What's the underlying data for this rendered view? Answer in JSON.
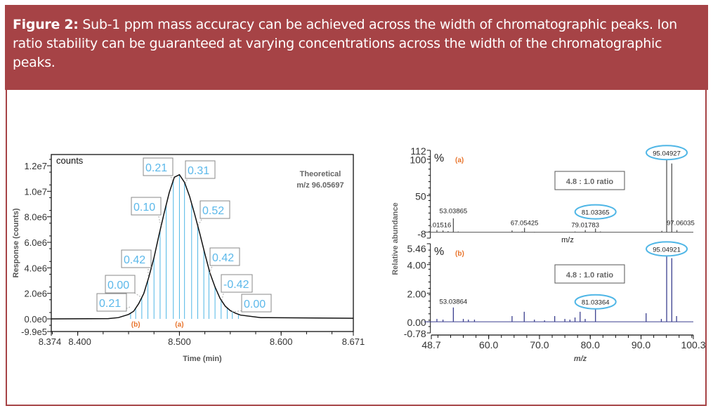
{
  "caption": {
    "label": "Figure 2:",
    "text": " Sub-1 ppm mass accuracy can be achieved across the width of chromatographic peaks. Ion ratio stability can be guaranteed at varying concentrations across the width of the chromatographic peaks."
  },
  "colors": {
    "brand": "#a64346",
    "stem": "#4fb6e6",
    "label": "#5bb8ea",
    "orange": "#e8742c",
    "spectrum_b": "#3b3f8f"
  },
  "chart_data": [
    {
      "type": "line",
      "title": "",
      "unit_label": "counts",
      "xlabel": "Time (min)",
      "ylabel": "Response (counts)",
      "xlim": [
        8.374,
        8.671
      ],
      "ylim": [
        -990000,
        12880000
      ],
      "xticks": [
        {
          "v": 8.374,
          "t": "8.374"
        },
        {
          "v": 8.4,
          "t": "8.400"
        },
        {
          "v": 8.5,
          "t": "8.500"
        },
        {
          "v": 8.6,
          "t": "8.600"
        },
        {
          "v": 8.671,
          "t": "8.671"
        }
      ],
      "yticks": [
        {
          "v": 12000000,
          "t": "1.2e7"
        },
        {
          "v": 10000000,
          "t": "1.0e7"
        },
        {
          "v": 8000000,
          "t": "8.0e6"
        },
        {
          "v": 6000000,
          "t": "6.0e6"
        },
        {
          "v": 4000000,
          "t": "4.0e6"
        },
        {
          "v": 2000000,
          "t": "2.0e6"
        },
        {
          "v": 0,
          "t": "0.0e0"
        },
        {
          "v": -990000,
          "t": "-9.9e5"
        }
      ],
      "annotation": [
        "Theoretical",
        "m/z 96.05697"
      ],
      "curve": [
        [
          8.374,
          0
        ],
        [
          8.43,
          20000
        ],
        [
          8.44,
          100000
        ],
        [
          8.45,
          350000
        ],
        [
          8.455,
          600000
        ],
        [
          8.46,
          1200000
        ],
        [
          8.465,
          2000000
        ],
        [
          8.47,
          3300000
        ],
        [
          8.475,
          4800000
        ],
        [
          8.48,
          6600000
        ],
        [
          8.485,
          8300000
        ],
        [
          8.49,
          9900000
        ],
        [
          8.495,
          11100000
        ],
        [
          8.5,
          11300000
        ],
        [
          8.505,
          10700000
        ],
        [
          8.51,
          9600000
        ],
        [
          8.515,
          8200000
        ],
        [
          8.52,
          6700000
        ],
        [
          8.525,
          5100000
        ],
        [
          8.53,
          3600000
        ],
        [
          8.535,
          2500000
        ],
        [
          8.54,
          1600000
        ],
        [
          8.545,
          1000000
        ],
        [
          8.55,
          650000
        ],
        [
          8.555,
          450000
        ],
        [
          8.56,
          300000
        ],
        [
          8.58,
          100000
        ],
        [
          8.671,
          50000
        ]
      ],
      "scan_times": [
        8.452,
        8.457,
        8.463,
        8.469,
        8.475,
        8.481,
        8.487,
        8.494,
        8.5,
        8.505,
        8.512,
        8.518,
        8.524,
        8.529,
        8.535,
        8.541,
        8.547,
        8.552,
        8.558
      ],
      "markers": [
        {
          "t": 8.457,
          "label": "(b)"
        },
        {
          "t": 8.5,
          "label": "(a)"
        }
      ],
      "ppm_errors": [
        "0.21",
        "0.00",
        "0.42",
        "0.10",
        "0.21",
        "0.31",
        "0.52",
        "0.42",
        "-0.42",
        "0.00"
      ]
    },
    {
      "type": "bar",
      "title": "(a)",
      "unit_label": "%",
      "xlabel": "m/z",
      "ylim": [
        -8,
        112
      ],
      "xlim": [
        48.7,
        100.3
      ],
      "yticks": [
        {
          "v": 112,
          "t": "112"
        },
        {
          "v": 100,
          "t": "100"
        },
        {
          "v": 50,
          "t": "50"
        },
        {
          "v": -8,
          "t": "-8"
        }
      ],
      "ratio": "4.8 : 1.0 ratio",
      "peaks": [
        [
          49.8,
          3
        ],
        [
          51,
          2.5
        ],
        [
          52,
          1.5
        ],
        [
          53.04,
          19
        ],
        [
          54,
          1
        ],
        [
          64.6,
          2.5
        ],
        [
          66.6,
          1
        ],
        [
          67.05,
          6
        ],
        [
          69,
          0.5
        ],
        [
          77,
          1
        ],
        [
          79.02,
          3
        ],
        [
          81.03,
          5
        ],
        [
          82,
          1
        ],
        [
          94.1,
          2
        ],
        [
          95.05,
          99
        ],
        [
          96.06,
          94
        ],
        [
          97.06,
          3
        ]
      ],
      "peak_labels": [
        {
          "mz": 50.6,
          "y": 7,
          "t": ".01516",
          "circled": false
        },
        {
          "mz": 53.04,
          "y": 26,
          "t": "53.03865",
          "circled": false
        },
        {
          "mz": 67.05,
          "y": 10,
          "t": "67.05425",
          "circled": false
        },
        {
          "mz": 79.02,
          "y": 7,
          "t": "79.01783",
          "circled": false
        },
        {
          "mz": 81.03,
          "y": 24,
          "t": "81.03365",
          "circled": true
        },
        {
          "mz": 95.05,
          "y": 105,
          "t": "95.04927",
          "circled": true
        },
        {
          "mz": 97.8,
          "y": 10,
          "t": "97.06035",
          "circled": false
        }
      ]
    },
    {
      "type": "bar",
      "title": "(b)",
      "unit_label": "%",
      "xlabel": "m/z",
      "ylabel": "Relative abundance",
      "ylim": [
        -0.78,
        5.46
      ],
      "xlim": [
        48.7,
        100.3
      ],
      "xticks": [
        {
          "v": 48.7,
          "t": "48.7"
        },
        {
          "v": 60,
          "t": "60.0"
        },
        {
          "v": 70,
          "t": "70.0"
        },
        {
          "v": 80,
          "t": "80.0"
        },
        {
          "v": 90,
          "t": "90.0"
        },
        {
          "v": 100.3,
          "t": "100.3"
        }
      ],
      "yticks": [
        {
          "v": 5.46,
          "t": "5.46"
        },
        {
          "v": 4,
          "t": "4.00"
        },
        {
          "v": 2,
          "t": "2.00"
        },
        {
          "v": 0,
          "t": "0.00"
        },
        {
          "v": -0.78,
          "t": "-0.78"
        }
      ],
      "ratio": "4.8 : 1.0 ratio",
      "peaks": [
        [
          49.8,
          0.2
        ],
        [
          51,
          0.15
        ],
        [
          53.04,
          1.0
        ],
        [
          55,
          0.2
        ],
        [
          56,
          0.15
        ],
        [
          57.2,
          0.15
        ],
        [
          64.6,
          0.4
        ],
        [
          67,
          0.7
        ],
        [
          69,
          0.15
        ],
        [
          71,
          0.1
        ],
        [
          73,
          0.4
        ],
        [
          75,
          0.2
        ],
        [
          76,
          0.15
        ],
        [
          77,
          0.3
        ],
        [
          78,
          0.7
        ],
        [
          79,
          0.2
        ],
        [
          81.03,
          0.93
        ],
        [
          91,
          0.6
        ],
        [
          94,
          0.2
        ],
        [
          95.05,
          4.68
        ],
        [
          96.06,
          4.45
        ],
        [
          97,
          0.4
        ]
      ],
      "peak_labels": [
        {
          "mz": 53.04,
          "y": 1.25,
          "t": "53.03864",
          "circled": false
        },
        {
          "mz": 81.03,
          "y": 1.2,
          "t": "81.03364",
          "circled": true
        },
        {
          "mz": 95.05,
          "y": 4.9,
          "t": "95.04921",
          "circled": true
        }
      ]
    }
  ]
}
